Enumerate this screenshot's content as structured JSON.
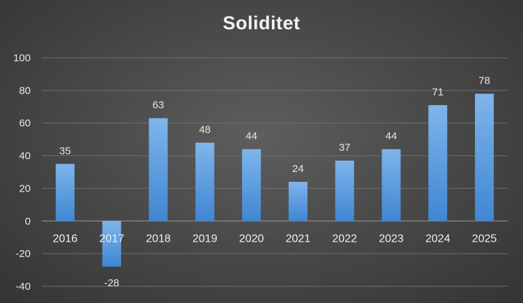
{
  "chart_data": {
    "type": "bar",
    "title": "Soliditet",
    "categories": [
      "2016",
      "2017",
      "2018",
      "2019",
      "2020",
      "2021",
      "2022",
      "2023",
      "2024",
      "2025"
    ],
    "values": [
      35,
      -28,
      63,
      48,
      44,
      24,
      37,
      44,
      71,
      78
    ],
    "data_labels": [
      "35",
      "-28",
      "63",
      "48",
      "44",
      "24",
      "37",
      "44",
      "71",
      "78"
    ],
    "ylim": [
      -40,
      100
    ],
    "yticks": [
      "-40",
      "-20",
      "0",
      "20",
      "40",
      "60",
      "80",
      "100"
    ],
    "grid": true,
    "legend": "none",
    "colors": {
      "bar_top": "#7fb5ea",
      "bar_bottom": "#3f86d2"
    }
  }
}
